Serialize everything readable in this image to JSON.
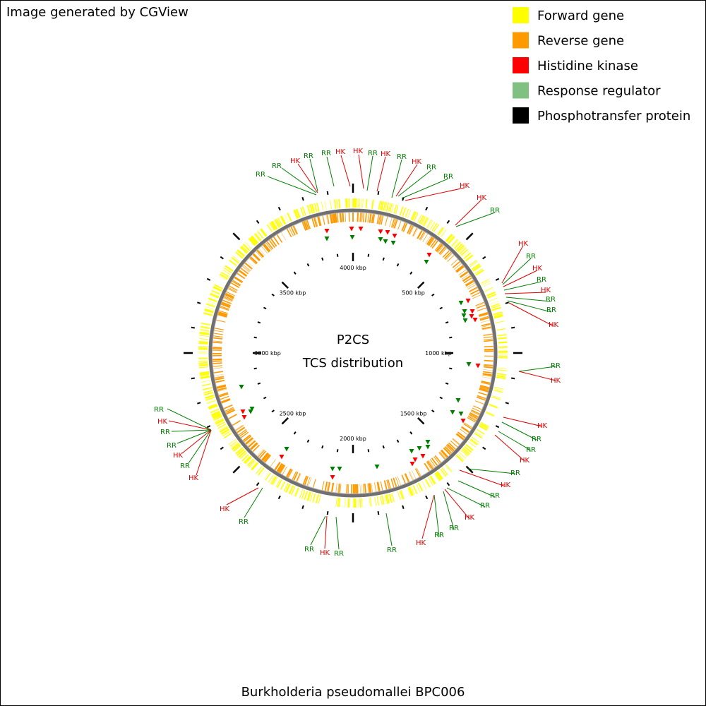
{
  "header": {
    "credit": "Image generated by CGView"
  },
  "legend": [
    {
      "label": "Forward gene",
      "color": "#ffff00"
    },
    {
      "label": "Reverse gene",
      "color": "#ff9900"
    },
    {
      "label": "Histidine kinase",
      "color": "#ff0000"
    },
    {
      "label": "Response regulator",
      "color": "#80c080"
    },
    {
      "label": "Phosphotransfer protein",
      "color": "#000000"
    }
  ],
  "center": {
    "title": "P2CS",
    "subtitle": "TCS distribution"
  },
  "scale_labels": [
    "4000 kbp",
    "500 kbp",
    "1000 kbp",
    "1500 kbp",
    "2000 kbp",
    "2500 kbp",
    "3000 kbp",
    "3500 kbp"
  ],
  "feature_labels": [
    {
      "text": "RR",
      "color": "#008000"
    },
    {
      "text": "RR",
      "color": "#008000"
    },
    {
      "text": "HK",
      "color": "#e00000"
    },
    {
      "text": "RR",
      "color": "#008000"
    },
    {
      "text": "RR",
      "color": "#008000"
    },
    {
      "text": "HK",
      "color": "#e00000"
    },
    {
      "text": "HK",
      "color": "#e00000"
    },
    {
      "text": "RR",
      "color": "#008000"
    },
    {
      "text": "HK",
      "color": "#e00000"
    },
    {
      "text": "RR",
      "color": "#008000"
    },
    {
      "text": "HK",
      "color": "#e00000"
    },
    {
      "text": "RR",
      "color": "#008000"
    },
    {
      "text": "RR",
      "color": "#008000"
    },
    {
      "text": "HK",
      "color": "#e00000"
    },
    {
      "text": "HK",
      "color": "#e00000"
    },
    {
      "text": "RR",
      "color": "#008000"
    },
    {
      "text": "HK",
      "color": "#e00000"
    },
    {
      "text": "RR",
      "color": "#008000"
    },
    {
      "text": "HK",
      "color": "#e00000"
    },
    {
      "text": "RR",
      "color": "#008000"
    },
    {
      "text": "HK",
      "color": "#e00000"
    },
    {
      "text": "RR",
      "color": "#008000"
    },
    {
      "text": "RR",
      "color": "#008000"
    },
    {
      "text": "HK",
      "color": "#e00000"
    },
    {
      "text": "RR",
      "color": "#008000"
    },
    {
      "text": "HK",
      "color": "#e00000"
    },
    {
      "text": "HK",
      "color": "#e00000"
    },
    {
      "text": "RR",
      "color": "#008000"
    },
    {
      "text": "RR",
      "color": "#008000"
    },
    {
      "text": "HK",
      "color": "#e00000"
    },
    {
      "text": "RR",
      "color": "#008000"
    },
    {
      "text": "HK",
      "color": "#e00000"
    },
    {
      "text": "RR",
      "color": "#008000"
    },
    {
      "text": "RR",
      "color": "#008000"
    },
    {
      "text": "HK",
      "color": "#e00000"
    },
    {
      "text": "RR",
      "color": "#008000"
    },
    {
      "text": "RR",
      "color": "#008000"
    },
    {
      "text": "HK",
      "color": "#e00000"
    },
    {
      "text": "RR",
      "color": "#008000"
    },
    {
      "text": "RR",
      "color": "#008000"
    },
    {
      "text": "HK",
      "color": "#e00000"
    },
    {
      "text": "RR",
      "color": "#008000"
    },
    {
      "text": "RR",
      "color": "#008000"
    },
    {
      "text": "HK",
      "color": "#e00000"
    },
    {
      "text": "RR",
      "color": "#008000"
    },
    {
      "text": "HK",
      "color": "#e00000"
    },
    {
      "text": "RR",
      "color": "#008000"
    },
    {
      "text": "RR",
      "color": "#008000"
    },
    {
      "text": "HK",
      "color": "#e00000"
    },
    {
      "text": "RR",
      "color": "#008000"
    },
    {
      "text": "HK",
      "color": "#e00000"
    }
  ],
  "footer": {
    "organism": "Burkholderia pseudomallei BPC006"
  }
}
